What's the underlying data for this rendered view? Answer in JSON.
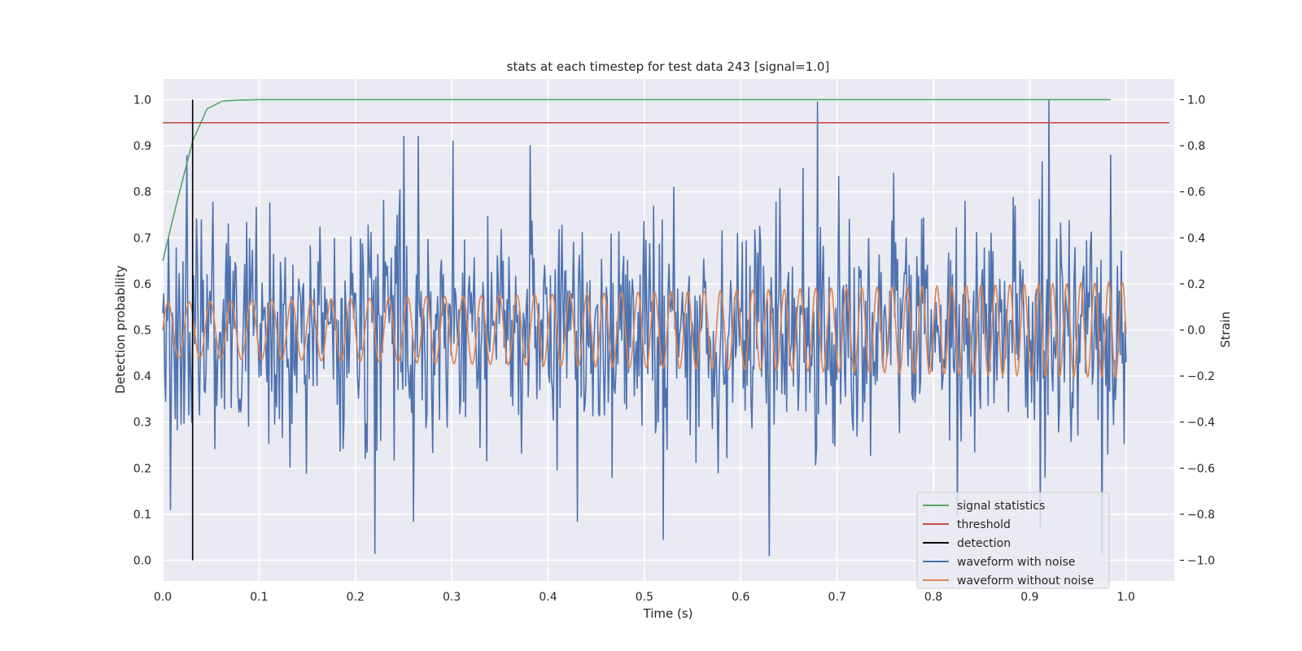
{
  "chart_data": {
    "type": "line",
    "title": "stats at each timestep for test data 243 [signal=1.0]",
    "xlabel": "Time (s)",
    "ylabel_left": "Detection probability",
    "ylabel_right": "Strain",
    "xlim": [
      0.0,
      1.05
    ],
    "ylim_left": [
      -0.045,
      1.045
    ],
    "ylim_right": [
      -1.09,
      1.09
    ],
    "x_ticks": [
      0.0,
      0.1,
      0.2,
      0.3,
      0.4,
      0.5,
      0.6,
      0.7,
      0.8,
      0.9,
      1.0
    ],
    "x_tick_labels": [
      "0.0",
      "0.1",
      "0.2",
      "0.3",
      "0.4",
      "0.5",
      "0.6",
      "0.7",
      "0.8",
      "0.9",
      "1.0"
    ],
    "y_ticks_left": [
      0.0,
      0.1,
      0.2,
      0.3,
      0.4,
      0.5,
      0.6,
      0.7,
      0.8,
      0.9,
      1.0
    ],
    "y_tick_labels_left": [
      "0.0",
      "0.1",
      "0.2",
      "0.3",
      "0.4",
      "0.5",
      "0.6",
      "0.7",
      "0.8",
      "0.9",
      "1.0"
    ],
    "y_ticks_right": [
      -1.0,
      -0.8,
      -0.6,
      -0.4,
      -0.2,
      0.0,
      0.2,
      0.4,
      0.6,
      0.8,
      1.0
    ],
    "y_tick_labels_right": [
      "−1.0",
      "−0.8",
      "−0.6",
      "−0.4",
      "−0.2",
      "0.0",
      "0.2",
      "0.4",
      "0.6",
      "0.8",
      "1.0"
    ],
    "grid": true,
    "legend_position": "lower-right",
    "background": "#eaeaf2",
    "series": [
      {
        "name": "signal statistics",
        "axis": "left",
        "color": "#55a868",
        "x": [
          0.0,
          0.015,
          0.031,
          0.046,
          0.062,
          0.077,
          0.1,
          0.2,
          0.4,
          0.6,
          0.8,
          0.984
        ],
        "y": [
          0.65,
          0.78,
          0.91,
          0.98,
          0.997,
          0.999,
          1.0,
          1.0,
          1.0,
          1.0,
          1.0,
          1.0
        ]
      },
      {
        "name": "threshold",
        "axis": "left",
        "color": "#c44e52",
        "x": [
          0.0,
          1.045
        ],
        "y": [
          0.95,
          0.95
        ]
      },
      {
        "name": "detection",
        "axis": "left",
        "color": "#000000",
        "x": [
          0.031,
          0.031
        ],
        "y": [
          0.0,
          1.0
        ]
      },
      {
        "name": "waveform with noise",
        "axis": "right",
        "color": "#4c72b0",
        "x_range": [
          0.0,
          1.0
        ],
        "n_points": 1000,
        "noise_std": 0.25,
        "peaks": [
          {
            "x": 0.68,
            "y": 0.99
          },
          {
            "x": 0.92,
            "y": 1.0
          },
          {
            "x": 0.25,
            "y": 0.84
          },
          {
            "x": 0.265,
            "y": 0.84
          },
          {
            "x": 0.301,
            "y": 0.82
          },
          {
            "x": 0.381,
            "y": 0.8
          },
          {
            "x": 0.984,
            "y": 0.76
          },
          {
            "x": 0.759,
            "y": 0.68
          },
          {
            "x": 0.22,
            "y": -0.97
          },
          {
            "x": 0.63,
            "y": -0.98
          },
          {
            "x": 0.975,
            "y": -0.97
          },
          {
            "x": 0.52,
            "y": -0.91
          },
          {
            "x": 0.26,
            "y": -0.83
          },
          {
            "x": 0.43,
            "y": -0.83
          },
          {
            "x": 0.911,
            "y": -0.86
          },
          {
            "x": 0.825,
            "y": -0.81
          }
        ]
      },
      {
        "name": "waveform without noise",
        "axis": "right",
        "color": "#dd8452",
        "x_range": [
          0.0,
          1.0
        ],
        "n_points": 1000,
        "amplitude_start": 0.12,
        "amplitude_end": 0.21,
        "frequency_start": 45,
        "frequency_end": 70
      }
    ]
  }
}
